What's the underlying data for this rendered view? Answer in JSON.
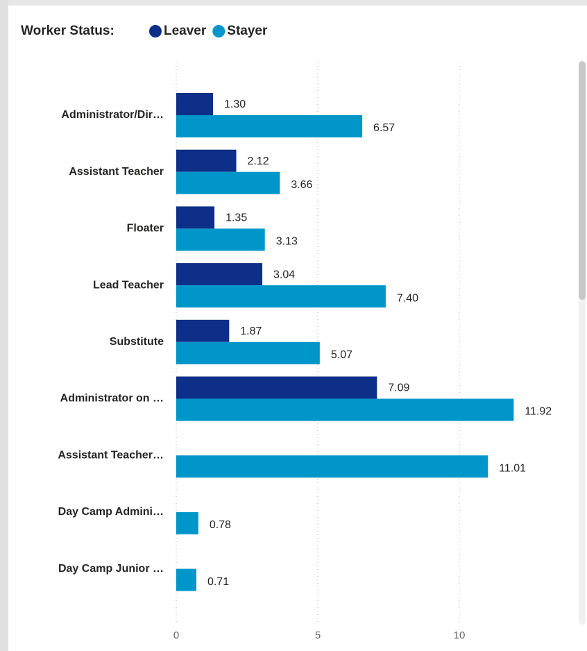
{
  "chart_data": {
    "type": "bar",
    "orientation": "horizontal",
    "legend_title": "Worker Status:",
    "categories": [
      "Administrator/Dir…",
      "Assistant Teacher",
      "Floater",
      "Lead Teacher",
      "Substitute",
      "Administrator on …",
      "Assistant Teacher…",
      "Day Camp Admini…",
      "Day Camp Junior …"
    ],
    "series": [
      {
        "name": "Leaver",
        "color": "#0d2f87",
        "values": [
          1.3,
          2.12,
          1.35,
          3.04,
          1.87,
          7.09,
          null,
          null,
          null
        ],
        "value_labels": [
          "1.30",
          "2.12",
          "1.35",
          "3.04",
          "1.87",
          "7.09",
          null,
          null,
          null
        ]
      },
      {
        "name": "Stayer",
        "color": "#0096c9",
        "values": [
          6.57,
          3.66,
          3.13,
          7.4,
          5.07,
          11.92,
          11.01,
          0.78,
          0.71
        ],
        "value_labels": [
          "6.57",
          "3.66",
          "3.13",
          "7.40",
          "5.07",
          "11.92",
          "11.01",
          "0.78",
          "0.71"
        ]
      }
    ],
    "xlim": [
      0,
      14
    ],
    "xticks": [
      0,
      5,
      10
    ],
    "grid": true
  }
}
